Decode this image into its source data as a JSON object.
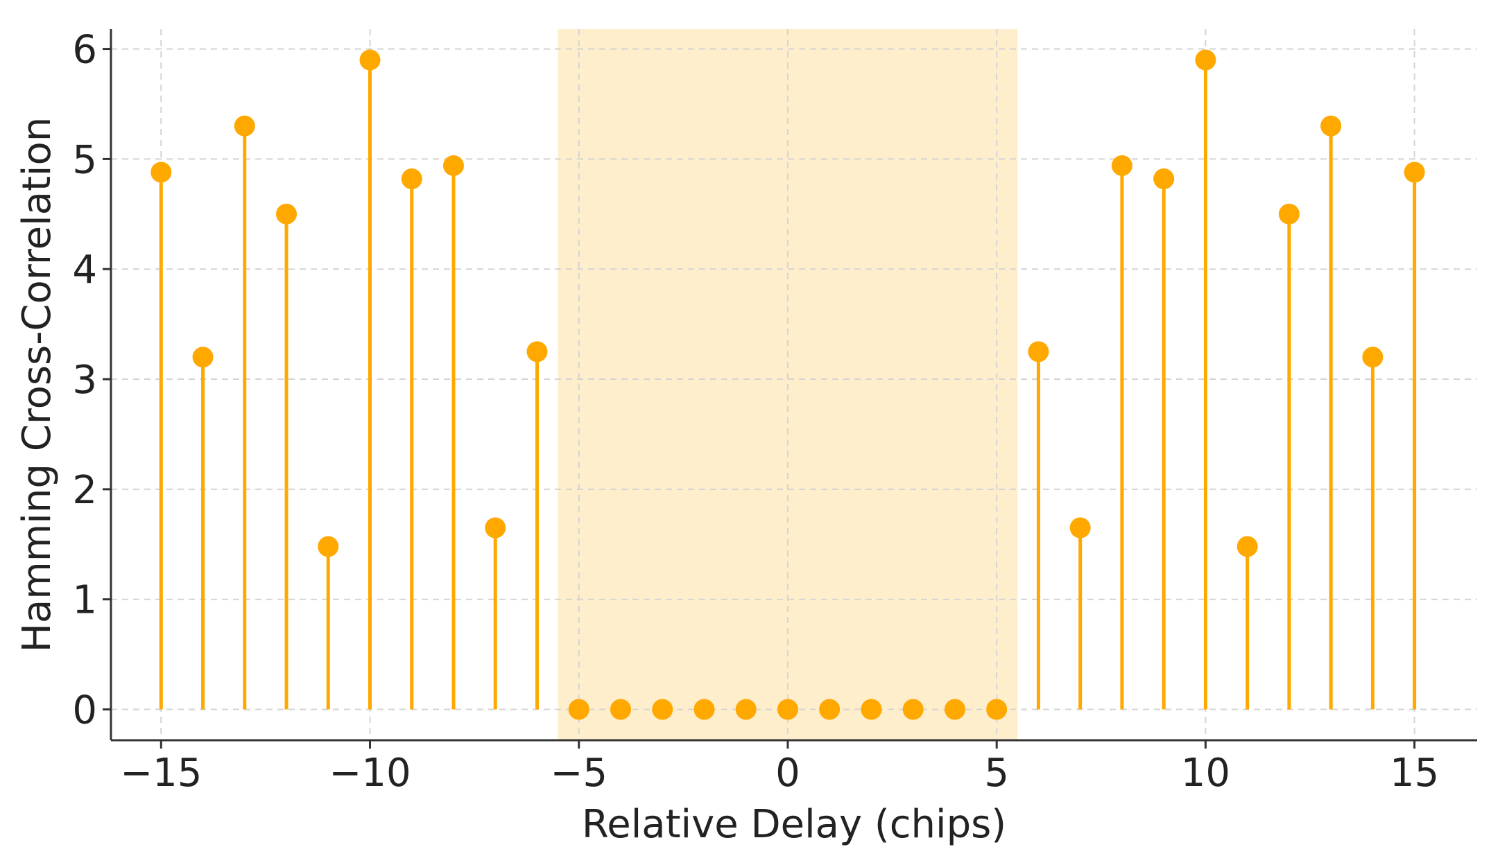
{
  "chart_data": {
    "type": "stem",
    "xlabel": "Relative Delay (chips)",
    "ylabel": "Hamming Cross-Correlation",
    "xlim": [
      -16.2,
      16.5
    ],
    "ylim": [
      -0.28,
      6.18
    ],
    "xticks": [
      -15,
      -10,
      -5,
      0,
      5,
      10,
      15
    ],
    "xtick_labels": [
      "−15",
      "−10",
      "−5",
      "0",
      "5",
      "10",
      "15"
    ],
    "yticks": [
      0,
      1,
      2,
      3,
      4,
      5,
      6
    ],
    "ytick_labels": [
      "0",
      "1",
      "2",
      "3",
      "4",
      "5",
      "6"
    ],
    "grid": true,
    "highlight_region": {
      "x_start": -5.5,
      "x_end": 5.5,
      "color": "#ffeecc"
    },
    "series": [
      {
        "color": "#ffa800",
        "x": [
          -15,
          -14,
          -13,
          -12,
          -11,
          -10,
          -9,
          -8,
          -7,
          -6,
          -5,
          -4,
          -3,
          -2,
          -1,
          0,
          1,
          2,
          3,
          4,
          5,
          6,
          7,
          8,
          9,
          10,
          11,
          12,
          13,
          14,
          15
        ],
        "y": [
          4.88,
          3.2,
          5.3,
          4.5,
          1.48,
          5.9,
          4.82,
          4.94,
          1.65,
          3.25,
          0,
          0,
          0,
          0,
          0,
          0,
          0,
          0,
          0,
          0,
          0,
          3.25,
          1.65,
          4.94,
          4.82,
          5.9,
          1.48,
          4.5,
          5.3,
          3.2,
          4.88
        ]
      }
    ]
  }
}
